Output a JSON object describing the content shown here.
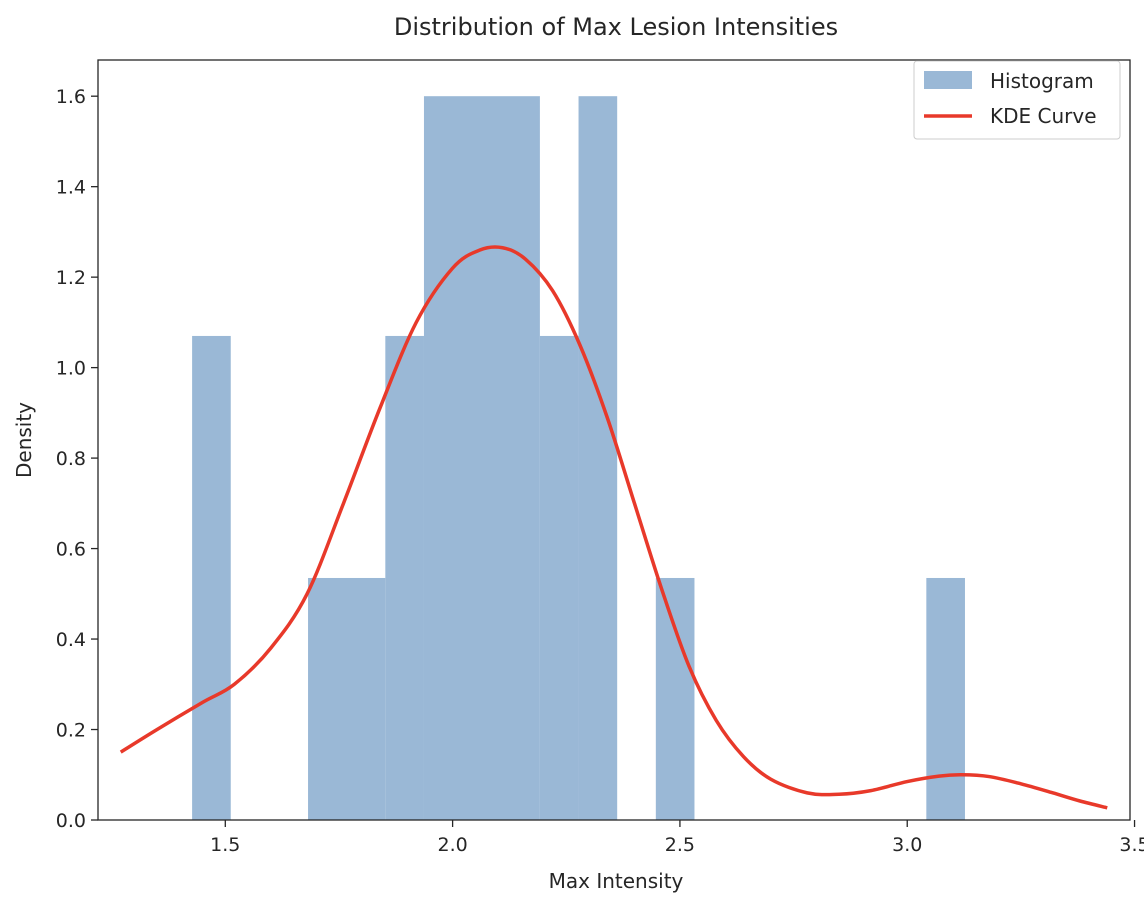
{
  "chart_data": {
    "type": "bar",
    "title": "Distribution of Max Lesion Intensities",
    "xlabel": "Max Intensity",
    "ylabel": "Density",
    "xlim": [
      1.22,
      3.49
    ],
    "ylim": [
      0,
      1.68
    ],
    "xticks": [
      1.5,
      2.0,
      2.5,
      3.0,
      3.5
    ],
    "xtick_labels": [
      "1.5",
      "2.0",
      "2.5",
      "3.0",
      "3.5"
    ],
    "yticks": [
      0.0,
      0.2,
      0.4,
      0.6,
      0.8,
      1.0,
      1.2,
      1.4,
      1.6
    ],
    "ytick_labels": [
      "0.0",
      "0.2",
      "0.4",
      "0.6",
      "0.8",
      "1.0",
      "1.2",
      "1.4",
      "1.6"
    ],
    "grid": false,
    "legend_position": "top-right",
    "series": [
      {
        "name": "Histogram",
        "kind": "histogram",
        "color": "#9ab8d6",
        "bins": [
          {
            "x0": 1.427,
            "x1": 1.512,
            "density": 1.07
          },
          {
            "x0": 1.682,
            "x1": 1.852,
            "density": 0.535
          },
          {
            "x0": 1.852,
            "x1": 1.937,
            "density": 1.07
          },
          {
            "x0": 1.937,
            "x1": 2.192,
            "density": 1.6
          },
          {
            "x0": 2.192,
            "x1": 2.277,
            "density": 1.07
          },
          {
            "x0": 2.277,
            "x1": 2.362,
            "density": 1.6
          },
          {
            "x0": 2.447,
            "x1": 2.532,
            "density": 0.535
          },
          {
            "x0": 3.042,
            "x1": 3.127,
            "density": 0.535
          }
        ]
      },
      {
        "name": "KDE Curve",
        "kind": "line",
        "color": "#e8392a",
        "x": [
          1.27,
          1.35,
          1.45,
          1.52,
          1.6,
          1.68,
          1.76,
          1.84,
          1.92,
          2.0,
          2.06,
          2.11,
          2.16,
          2.22,
          2.28,
          2.34,
          2.4,
          2.46,
          2.52,
          2.58,
          2.64,
          2.7,
          2.78,
          2.85,
          2.92,
          3.0,
          3.07,
          3.12,
          3.18,
          3.25,
          3.32,
          3.38,
          3.44
        ],
        "y": [
          0.15,
          0.2,
          0.26,
          0.3,
          0.38,
          0.5,
          0.7,
          0.91,
          1.1,
          1.22,
          1.26,
          1.265,
          1.24,
          1.17,
          1.05,
          0.89,
          0.7,
          0.51,
          0.34,
          0.22,
          0.14,
          0.09,
          0.06,
          0.057,
          0.065,
          0.085,
          0.097,
          0.1,
          0.096,
          0.08,
          0.06,
          0.042,
          0.027
        ]
      }
    ]
  }
}
